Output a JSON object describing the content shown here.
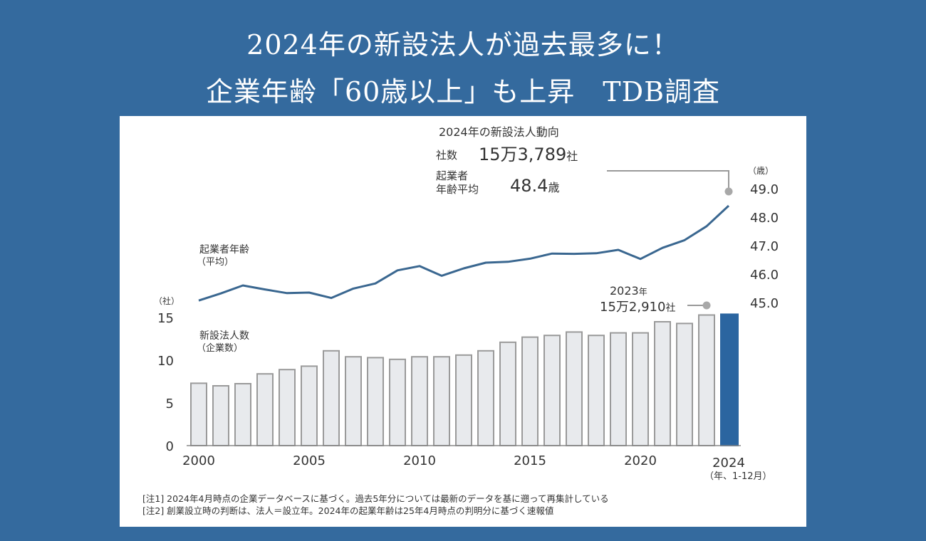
{
  "headline": {
    "line1": "2024年の新設法人が過去最多に！",
    "line2": "企業年齢「60歳以上」も上昇　TDB調査"
  },
  "colors": {
    "background": "#346a9e",
    "bar_fill": "#e8eaed",
    "bar_stroke": "#9a9a9a",
    "highlight_bar": "#2b65a0",
    "line": "#3a6790",
    "marker": "#a8a8a8"
  },
  "callout": {
    "title": "2024年の新設法人動向",
    "count_label": "社数",
    "count_value": "15万3,789",
    "count_unit": "社",
    "age_label_1": "起業者",
    "age_label_2": "年齢平均",
    "age_value": "48.4",
    "age_unit": "歳"
  },
  "callout_2023": {
    "year": "2023",
    "year_unit": "年",
    "value": "15万2,910",
    "unit": "社"
  },
  "footnotes": [
    "[注1] 2024年4月時点の企業データベースに基づく。過去5年分については最新のデータを基に遡って再集計している",
    "[注2] 創業設立時の判断は、法人＝設立年。2024年の起業年齢は25年4月時点の判明分に基づく速報値"
  ],
  "chart_data": {
    "type": "bar+line",
    "title": "",
    "categories": [
      2000,
      2001,
      2002,
      2003,
      2004,
      2005,
      2006,
      2007,
      2008,
      2009,
      2010,
      2011,
      2012,
      2013,
      2014,
      2015,
      2016,
      2017,
      2018,
      2019,
      2020,
      2021,
      2022,
      2023,
      2024
    ],
    "series": [
      {
        "name": "新設法人数（企業数）",
        "type": "bar",
        "axis": "left",
        "unit": "万社",
        "values": [
          7.3,
          7.0,
          7.25,
          8.4,
          8.9,
          9.3,
          11.1,
          10.4,
          10.3,
          10.1,
          10.4,
          10.4,
          10.6,
          11.1,
          12.1,
          12.7,
          12.9,
          13.3,
          12.9,
          13.2,
          13.2,
          14.5,
          14.3,
          15.29,
          15.38
        ],
        "highlight_index": 24
      },
      {
        "name": "起業者年齢（平均）",
        "type": "line",
        "axis": "right",
        "unit": "歳",
        "values": [
          45.07,
          45.32,
          45.6,
          45.46,
          45.33,
          45.35,
          45.16,
          45.49,
          45.67,
          46.13,
          46.28,
          45.94,
          46.2,
          46.4,
          46.43,
          46.54,
          46.72,
          46.71,
          46.73,
          46.85,
          46.53,
          46.92,
          47.19,
          47.68,
          48.4
        ]
      }
    ],
    "left_axis": {
      "label": "（社）",
      "ticks": [
        "0",
        "5",
        "10",
        "15"
      ],
      "range": [
        0,
        15
      ]
    },
    "right_axis": {
      "label": "（歳）",
      "ticks": [
        "45.0",
        "46.0",
        "47.0",
        "48.0",
        "49.0"
      ],
      "range": [
        45,
        49
      ]
    },
    "x_ticks": [
      "2000",
      "2005",
      "2010",
      "2015",
      "2020",
      "2024"
    ],
    "x_unit_note": "（年、1-12月）",
    "bar_series_label_1": "新設法人数",
    "bar_series_label_2": "（企業数）",
    "line_series_label_1": "起業者年齢",
    "line_series_label_2": "（平均）",
    "grid": false
  }
}
